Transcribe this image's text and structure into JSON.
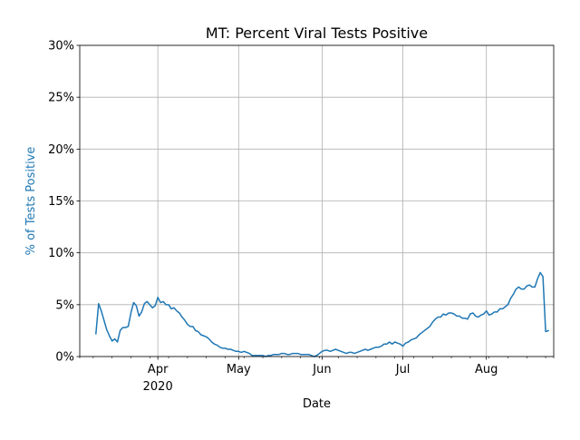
{
  "colors": {
    "line": "#1f77b4",
    "grid": "#b0b0b0",
    "ylabel": "#1f77b4",
    "axis": "#000000"
  },
  "chart_data": {
    "type": "line",
    "title": "MT: Percent Viral Tests Positive",
    "xlabel": "Date",
    "ylabel": "% of Tests Positive",
    "grid": true,
    "xlim": [
      "2020-03-03",
      "2020-08-26"
    ],
    "ylim": [
      0,
      30
    ],
    "yticks": [
      0,
      5,
      10,
      15,
      20,
      25,
      30
    ],
    "ytick_labels": [
      "0%",
      "5%",
      "10%",
      "15%",
      "20%",
      "25%",
      "30%"
    ],
    "xticks": [
      {
        "date": "2020-04-01",
        "label": "Apr",
        "sublabel": "2020"
      },
      {
        "date": "2020-05-01",
        "label": "May",
        "sublabel": ""
      },
      {
        "date": "2020-06-01",
        "label": "Jun",
        "sublabel": ""
      },
      {
        "date": "2020-07-01",
        "label": "Jul",
        "sublabel": ""
      },
      {
        "date": "2020-08-01",
        "label": "Aug",
        "sublabel": ""
      }
    ],
    "minor_xticks": [
      "2020-03-03",
      "2020-03-08",
      "2020-03-15",
      "2020-03-22",
      "2020-03-29",
      "2020-04-05",
      "2020-04-12",
      "2020-04-19",
      "2020-04-26",
      "2020-05-03",
      "2020-05-10",
      "2020-05-17",
      "2020-05-24",
      "2020-05-31",
      "2020-06-07",
      "2020-06-14",
      "2020-06-21",
      "2020-06-28",
      "2020-07-05",
      "2020-07-12",
      "2020-07-19",
      "2020-07-26",
      "2020-08-02",
      "2020-08-09",
      "2020-08-16",
      "2020-08-23",
      "2020-08-26"
    ],
    "series": [
      {
        "name": "",
        "points": [
          [
            "2020-03-09",
            2.2
          ],
          [
            "2020-03-10",
            5.1
          ],
          [
            "2020-03-11",
            4.4
          ],
          [
            "2020-03-12",
            3.5
          ],
          [
            "2020-03-13",
            2.6
          ],
          [
            "2020-03-14",
            2.0
          ],
          [
            "2020-03-15",
            1.5
          ],
          [
            "2020-03-16",
            1.7
          ],
          [
            "2020-03-17",
            1.4
          ],
          [
            "2020-03-18",
            2.5
          ],
          [
            "2020-03-19",
            2.8
          ],
          [
            "2020-03-20",
            2.8
          ],
          [
            "2020-03-21",
            2.9
          ],
          [
            "2020-03-22",
            4.2
          ],
          [
            "2020-03-23",
            5.2
          ],
          [
            "2020-03-24",
            4.9
          ],
          [
            "2020-03-25",
            3.9
          ],
          [
            "2020-03-26",
            4.3
          ],
          [
            "2020-03-27",
            5.1
          ],
          [
            "2020-03-28",
            5.3
          ],
          [
            "2020-03-29",
            5.0
          ],
          [
            "2020-03-30",
            4.7
          ],
          [
            "2020-03-31",
            4.9
          ],
          [
            "2020-04-01",
            5.7
          ],
          [
            "2020-04-02",
            5.2
          ],
          [
            "2020-04-03",
            5.3
          ],
          [
            "2020-04-04",
            5.0
          ],
          [
            "2020-04-05",
            5.0
          ],
          [
            "2020-04-06",
            4.6
          ],
          [
            "2020-04-07",
            4.7
          ],
          [
            "2020-04-08",
            4.4
          ],
          [
            "2020-04-09",
            4.2
          ],
          [
            "2020-04-10",
            3.8
          ],
          [
            "2020-04-11",
            3.5
          ],
          [
            "2020-04-12",
            3.1
          ],
          [
            "2020-04-13",
            2.9
          ],
          [
            "2020-04-14",
            2.9
          ],
          [
            "2020-04-15",
            2.5
          ],
          [
            "2020-04-16",
            2.4
          ],
          [
            "2020-04-17",
            2.1
          ],
          [
            "2020-04-18",
            2.0
          ],
          [
            "2020-04-19",
            1.9
          ],
          [
            "2020-04-20",
            1.7
          ],
          [
            "2020-04-21",
            1.4
          ],
          [
            "2020-04-22",
            1.2
          ],
          [
            "2020-04-23",
            1.1
          ],
          [
            "2020-04-24",
            0.9
          ],
          [
            "2020-04-25",
            0.8
          ],
          [
            "2020-04-26",
            0.8
          ],
          [
            "2020-04-27",
            0.7
          ],
          [
            "2020-04-28",
            0.7
          ],
          [
            "2020-04-29",
            0.6
          ],
          [
            "2020-04-30",
            0.5
          ],
          [
            "2020-05-01",
            0.5
          ],
          [
            "2020-05-02",
            0.4
          ],
          [
            "2020-05-03",
            0.5
          ],
          [
            "2020-05-04",
            0.4
          ],
          [
            "2020-05-05",
            0.3
          ],
          [
            "2020-05-06",
            0.1
          ],
          [
            "2020-05-07",
            0.1
          ],
          [
            "2020-05-08",
            0.1
          ],
          [
            "2020-05-09",
            0.1
          ],
          [
            "2020-05-10",
            0.1
          ],
          [
            "2020-05-11",
            0.0
          ],
          [
            "2020-05-12",
            0.1
          ],
          [
            "2020-05-13",
            0.1
          ],
          [
            "2020-05-14",
            0.2
          ],
          [
            "2020-05-15",
            0.2
          ],
          [
            "2020-05-16",
            0.2
          ],
          [
            "2020-05-17",
            0.3
          ],
          [
            "2020-05-18",
            0.3
          ],
          [
            "2020-05-19",
            0.2
          ],
          [
            "2020-05-20",
            0.2
          ],
          [
            "2020-05-21",
            0.3
          ],
          [
            "2020-05-22",
            0.3
          ],
          [
            "2020-05-23",
            0.3
          ],
          [
            "2020-05-24",
            0.2
          ],
          [
            "2020-05-25",
            0.2
          ],
          [
            "2020-05-26",
            0.2
          ],
          [
            "2020-05-27",
            0.2
          ],
          [
            "2020-05-28",
            0.1
          ],
          [
            "2020-05-29",
            0.0
          ],
          [
            "2020-05-30",
            0.1
          ],
          [
            "2020-05-31",
            0.3
          ],
          [
            "2020-06-01",
            0.5
          ],
          [
            "2020-06-02",
            0.6
          ],
          [
            "2020-06-03",
            0.6
          ],
          [
            "2020-06-04",
            0.5
          ],
          [
            "2020-06-05",
            0.6
          ],
          [
            "2020-06-06",
            0.7
          ],
          [
            "2020-06-07",
            0.6
          ],
          [
            "2020-06-08",
            0.5
          ],
          [
            "2020-06-09",
            0.4
          ],
          [
            "2020-06-10",
            0.3
          ],
          [
            "2020-06-11",
            0.4
          ],
          [
            "2020-06-12",
            0.4
          ],
          [
            "2020-06-13",
            0.3
          ],
          [
            "2020-06-14",
            0.4
          ],
          [
            "2020-06-15",
            0.5
          ],
          [
            "2020-06-16",
            0.6
          ],
          [
            "2020-06-17",
            0.7
          ],
          [
            "2020-06-18",
            0.6
          ],
          [
            "2020-06-19",
            0.7
          ],
          [
            "2020-06-20",
            0.8
          ],
          [
            "2020-06-21",
            0.9
          ],
          [
            "2020-06-22",
            0.9
          ],
          [
            "2020-06-23",
            1.0
          ],
          [
            "2020-06-24",
            1.2
          ],
          [
            "2020-06-25",
            1.2
          ],
          [
            "2020-06-26",
            1.4
          ],
          [
            "2020-06-27",
            1.2
          ],
          [
            "2020-06-28",
            1.4
          ],
          [
            "2020-06-29",
            1.3
          ],
          [
            "2020-06-30",
            1.2
          ],
          [
            "2020-07-01",
            1.0
          ],
          [
            "2020-07-02",
            1.3
          ],
          [
            "2020-07-03",
            1.4
          ],
          [
            "2020-07-04",
            1.6
          ],
          [
            "2020-07-05",
            1.7
          ],
          [
            "2020-07-06",
            1.8
          ],
          [
            "2020-07-07",
            2.1
          ],
          [
            "2020-07-08",
            2.3
          ],
          [
            "2020-07-09",
            2.5
          ],
          [
            "2020-07-10",
            2.7
          ],
          [
            "2020-07-11",
            2.9
          ],
          [
            "2020-07-12",
            3.3
          ],
          [
            "2020-07-13",
            3.6
          ],
          [
            "2020-07-14",
            3.8
          ],
          [
            "2020-07-15",
            3.8
          ],
          [
            "2020-07-16",
            4.1
          ],
          [
            "2020-07-17",
            4.0
          ],
          [
            "2020-07-18",
            4.2
          ],
          [
            "2020-07-19",
            4.2
          ],
          [
            "2020-07-20",
            4.1
          ],
          [
            "2020-07-21",
            3.9
          ],
          [
            "2020-07-22",
            3.9
          ],
          [
            "2020-07-23",
            3.7
          ],
          [
            "2020-07-24",
            3.7
          ],
          [
            "2020-07-25",
            3.6
          ],
          [
            "2020-07-26",
            4.1
          ],
          [
            "2020-07-27",
            4.2
          ],
          [
            "2020-07-28",
            3.9
          ],
          [
            "2020-07-29",
            3.8
          ],
          [
            "2020-07-30",
            4.0
          ],
          [
            "2020-07-31",
            4.1
          ],
          [
            "2020-08-01",
            4.4
          ],
          [
            "2020-08-02",
            4.0
          ],
          [
            "2020-08-03",
            4.1
          ],
          [
            "2020-08-04",
            4.3
          ],
          [
            "2020-08-05",
            4.3
          ],
          [
            "2020-08-06",
            4.6
          ],
          [
            "2020-08-07",
            4.6
          ],
          [
            "2020-08-08",
            4.8
          ],
          [
            "2020-08-09",
            5.0
          ],
          [
            "2020-08-10",
            5.6
          ],
          [
            "2020-08-11",
            6.0
          ],
          [
            "2020-08-12",
            6.5
          ],
          [
            "2020-08-13",
            6.7
          ],
          [
            "2020-08-14",
            6.5
          ],
          [
            "2020-08-15",
            6.5
          ],
          [
            "2020-08-16",
            6.8
          ],
          [
            "2020-08-17",
            6.9
          ],
          [
            "2020-08-18",
            6.7
          ],
          [
            "2020-08-19",
            6.7
          ],
          [
            "2020-08-20",
            7.5
          ],
          [
            "2020-08-21",
            8.1
          ],
          [
            "2020-08-22",
            7.7
          ],
          [
            "2020-08-23",
            2.4
          ],
          [
            "2020-08-24",
            2.5
          ]
        ]
      }
    ]
  }
}
